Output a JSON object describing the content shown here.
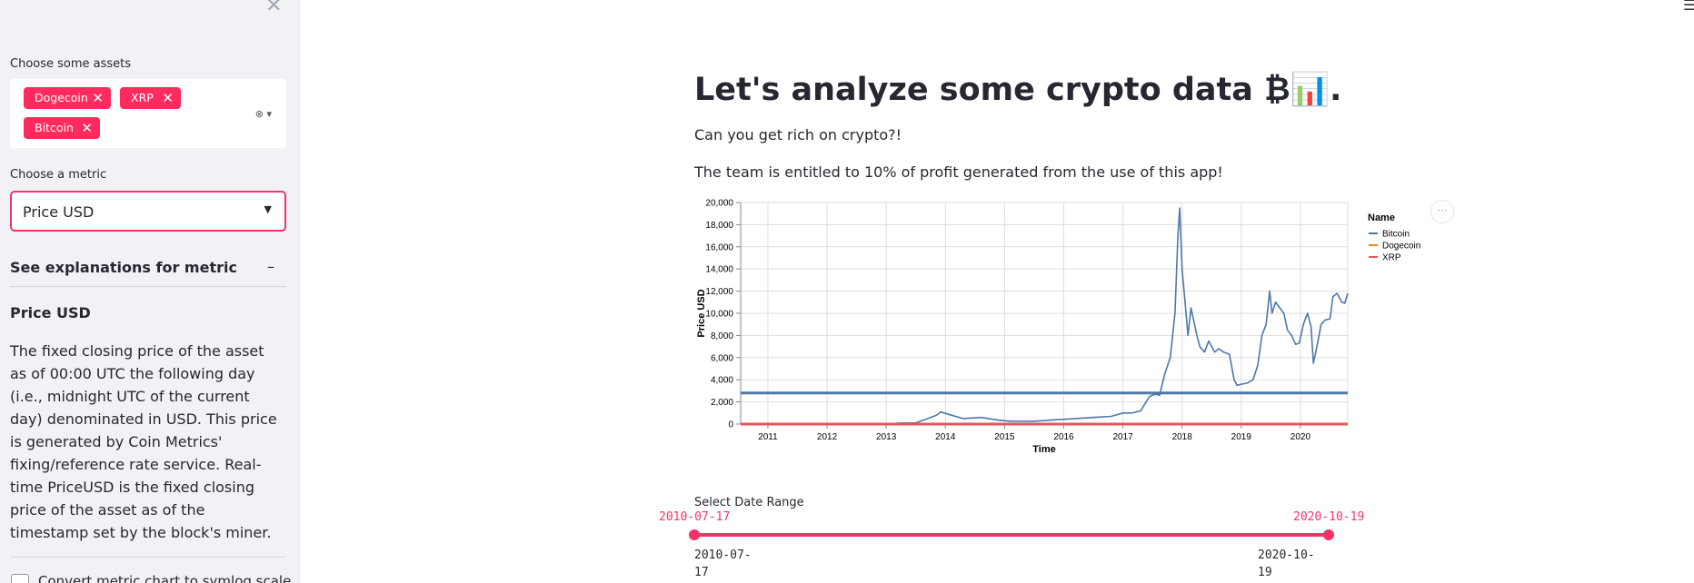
{
  "sidebar": {
    "close_icon": "close-icon",
    "assets_label": "Choose some assets",
    "assets": [
      {
        "label": "Dogecoin"
      },
      {
        "label": "XRP"
      },
      {
        "label": "Bitcoin"
      }
    ],
    "remove_glyph": "✕",
    "metric_label": "Choose a metric",
    "metric_value": "Price USD",
    "explanations_title": "See explanations for metric",
    "collapse_glyph": "–",
    "metric_name": "Price USD",
    "metric_description": "The fixed closing price of the asset as of 00:00 UTC the following day (i.e., midnight UTC of the current day) denominated in USD. This price is generated by Coin Metrics' fixing/reference rate service. Real-time PriceUSD is the fixed closing price of the asset as of the timestamp set by the block's miner.",
    "symlog_label": "Convert metric chart to symlog scale"
  },
  "main": {
    "title": "Let's analyze some crypto data ₿📊.",
    "subtitle": "Can you get rich on crypto?!",
    "note": "The team is entitled to 10% of profit generated from the use of this app!",
    "chart_menu_glyph": "···"
  },
  "date_range": {
    "label": "Select Date Range",
    "start": "2010-07-17",
    "end": "2020-10-19",
    "start_tick": [
      "2010-07-",
      "17"
    ],
    "end_tick": [
      "2020-10-",
      "19"
    ]
  },
  "colors": {
    "accent": "#f63366",
    "bitcoin": "#4c78a8",
    "dogecoin": "#f58518",
    "xrp": "#e45756"
  },
  "chart_data": {
    "type": "line",
    "xlabel": "Time",
    "ylabel": "Price USD",
    "x_ticks": [
      "2011",
      "2012",
      "2013",
      "2014",
      "2015",
      "2016",
      "2017",
      "2018",
      "2019",
      "2020"
    ],
    "y_ticks": [
      "0",
      "2,000",
      "4,000",
      "6,000",
      "8,000",
      "10,000",
      "12,000",
      "14,000",
      "16,000",
      "18,000",
      "20,000"
    ],
    "xlim": [
      2010.54,
      2020.8
    ],
    "ylim": [
      0,
      20000
    ],
    "grid": true,
    "legend_title": "Name",
    "legend_position": "right",
    "series": [
      {
        "name": "Bitcoin",
        "color": "#4c78a8",
        "x": [
          2010.54,
          2012.0,
          2013.0,
          2013.25,
          2013.5,
          2013.85,
          2013.92,
          2014.1,
          2014.3,
          2014.6,
          2014.9,
          2015.1,
          2015.5,
          2015.9,
          2016.0,
          2016.5,
          2016.8,
          2017.0,
          2017.15,
          2017.3,
          2017.45,
          2017.55,
          2017.62,
          2017.7,
          2017.8,
          2017.88,
          2017.93,
          2017.96,
          2018.0,
          2018.05,
          2018.1,
          2018.15,
          2018.25,
          2018.3,
          2018.38,
          2018.45,
          2018.55,
          2018.62,
          2018.7,
          2018.8,
          2018.88,
          2018.93,
          2019.0,
          2019.1,
          2019.2,
          2019.28,
          2019.35,
          2019.42,
          2019.48,
          2019.52,
          2019.58,
          2019.65,
          2019.72,
          2019.78,
          2019.85,
          2019.92,
          2019.98,
          2020.05,
          2020.12,
          2020.18,
          2020.22,
          2020.28,
          2020.35,
          2020.42,
          2020.5,
          2020.55,
          2020.62,
          2020.7,
          2020.75,
          2020.8
        ],
        "values": [
          0,
          5,
          15,
          100,
          100,
          800,
          1100,
          800,
          500,
          600,
          350,
          250,
          250,
          400,
          430,
          600,
          700,
          1000,
          1000,
          1200,
          2500,
          2700,
          2600,
          4400,
          6000,
          10000,
          17000,
          19500,
          14000,
          11000,
          8000,
          10500,
          8000,
          7000,
          6500,
          7500,
          6500,
          6800,
          6500,
          6300,
          4000,
          3500,
          3600,
          3700,
          4000,
          5300,
          8000,
          9000,
          12000,
          10000,
          11000,
          10500,
          10000,
          8500,
          8000,
          7200,
          7300,
          9000,
          10000,
          8800,
          5500,
          7000,
          9000,
          9400,
          9500,
          11500,
          11800,
          11000,
          10900,
          11800
        ]
      },
      {
        "name": "Dogecoin",
        "color": "#f58518",
        "x": [
          2010.54,
          2020.8
        ],
        "values": [
          0,
          0
        ]
      },
      {
        "name": "XRP",
        "color": "#e45756",
        "x": [
          2010.54,
          2020.8
        ],
        "values": [
          0,
          0
        ]
      },
      {
        "name": "Bitcoin",
        "color": "#4c78a8",
        "x": [
          2010.54,
          2020.8
        ],
        "values": [
          2800,
          2800
        ]
      }
    ]
  }
}
